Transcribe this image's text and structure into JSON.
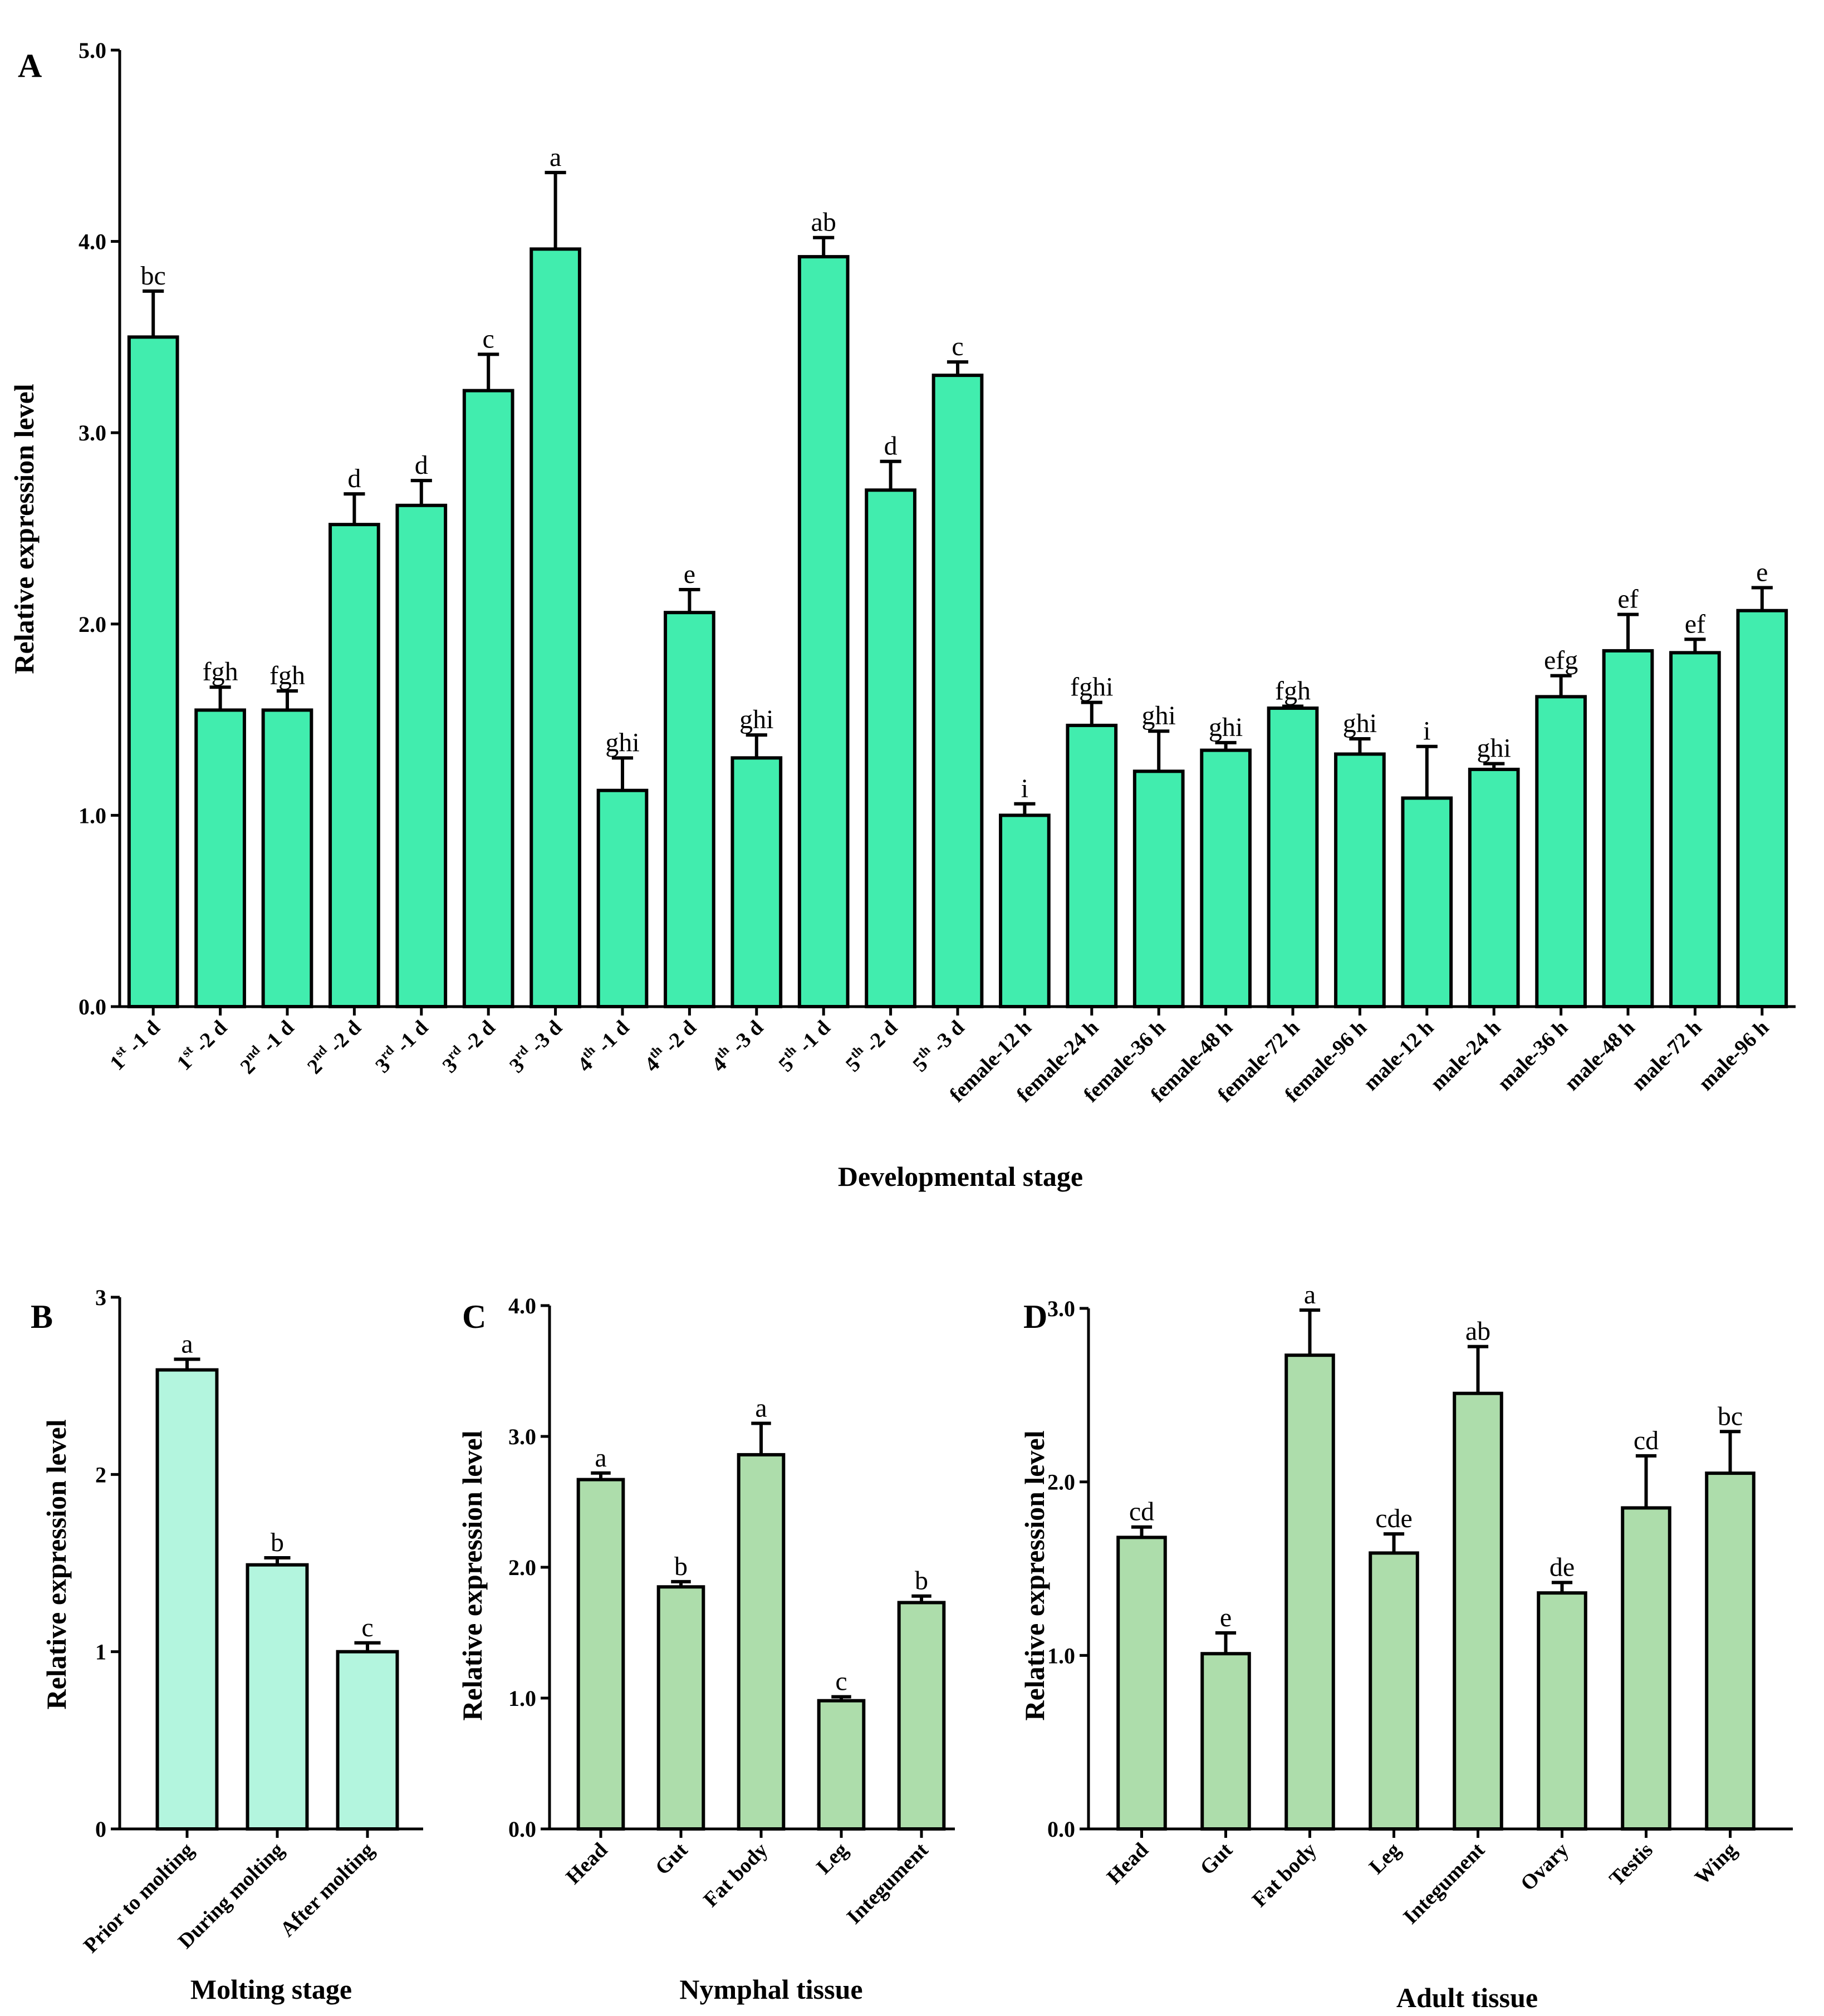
{
  "chart_data": [
    {
      "id": "A",
      "panel_label": "A",
      "type": "bar",
      "xlabel": "Developmental stage",
      "ylabel": "Relative expression level",
      "ylim": [
        0,
        5
      ],
      "yticks": [
        0,
        1,
        2,
        3,
        4,
        5
      ],
      "ytick_labels": [
        "0.0",
        "1.0",
        "2.0",
        "3.0",
        "4.0",
        "5.0"
      ],
      "bar_color": "#41EDAE",
      "categories": [
        {
          "num": "1",
          "sup": "st",
          "rest": "-1 d"
        },
        {
          "num": "1",
          "sup": "st",
          "rest": "-2 d"
        },
        {
          "num": "2",
          "sup": "nd",
          "rest": "-1 d"
        },
        {
          "num": "2",
          "sup": "nd",
          "rest": "-2 d"
        },
        {
          "num": "3",
          "sup": "rd",
          "rest": "-1 d"
        },
        {
          "num": "3",
          "sup": "rd",
          "rest": "-2 d"
        },
        {
          "num": "3",
          "sup": "rd",
          "rest": "-3 d"
        },
        {
          "num": "4",
          "sup": "th",
          "rest": "-1 d"
        },
        {
          "num": "4",
          "sup": "th",
          "rest": "-2 d"
        },
        {
          "num": "4",
          "sup": "th",
          "rest": "-3 d"
        },
        {
          "num": "5",
          "sup": "th",
          "rest": "-1 d"
        },
        {
          "num": "5",
          "sup": "th",
          "rest": "-2 d"
        },
        {
          "num": "5",
          "sup": "th",
          "rest": "-3 d"
        },
        {
          "num": "female-12 h",
          "sup": "",
          "rest": ""
        },
        {
          "num": "female-24 h",
          "sup": "",
          "rest": ""
        },
        {
          "num": "female-36 h",
          "sup": "",
          "rest": ""
        },
        {
          "num": "female-48 h",
          "sup": "",
          "rest": ""
        },
        {
          "num": "female-72 h",
          "sup": "",
          "rest": ""
        },
        {
          "num": "female-96 h",
          "sup": "",
          "rest": ""
        },
        {
          "num": "male-12 h",
          "sup": "",
          "rest": ""
        },
        {
          "num": "male-24 h",
          "sup": "",
          "rest": ""
        },
        {
          "num": "male-36 h",
          "sup": "",
          "rest": ""
        },
        {
          "num": "male-48 h",
          "sup": "",
          "rest": ""
        },
        {
          "num": "male-72 h",
          "sup": "",
          "rest": ""
        },
        {
          "num": "male-96 h",
          "sup": "",
          "rest": ""
        }
      ],
      "values": [
        3.5,
        1.55,
        1.55,
        2.52,
        2.62,
        3.22,
        3.96,
        1.13,
        2.06,
        1.3,
        3.92,
        2.7,
        3.3,
        1.0,
        1.47,
        1.23,
        1.34,
        1.56,
        1.32,
        1.09,
        1.24,
        1.62,
        1.86,
        1.85,
        2.07
      ],
      "errors": [
        0.24,
        0.12,
        0.1,
        0.16,
        0.13,
        0.19,
        0.4,
        0.17,
        0.12,
        0.12,
        0.1,
        0.15,
        0.07,
        0.06,
        0.12,
        0.21,
        0.04,
        0.01,
        0.08,
        0.27,
        0.03,
        0.11,
        0.19,
        0.07,
        0.12
      ],
      "significance": [
        "bc",
        "fgh",
        "fgh",
        "d",
        "d",
        "c",
        "a",
        "ghi",
        "e",
        "ghi",
        "ab",
        "d",
        "c",
        "i",
        "fghi",
        "ghi",
        "ghi",
        "fgh",
        "ghi",
        "i",
        "ghi",
        "efg",
        "ef",
        "ef",
        "e"
      ]
    },
    {
      "id": "B",
      "panel_label": "B",
      "type": "bar",
      "xlabel": "Molting stage",
      "ylabel": "Relative expression level",
      "ylim": [
        0,
        3
      ],
      "yticks": [
        0,
        1,
        2,
        3
      ],
      "ytick_labels": [
        "0",
        "1",
        "2",
        "3"
      ],
      "bar_color": "#B3F5DE",
      "categories": [
        {
          "num": "Prior to molting",
          "sup": "",
          "rest": ""
        },
        {
          "num": "During molting",
          "sup": "",
          "rest": ""
        },
        {
          "num": "After molting",
          "sup": "",
          "rest": ""
        }
      ],
      "values": [
        2.59,
        1.49,
        1.0
      ],
      "errors": [
        0.06,
        0.04,
        0.05
      ],
      "significance": [
        "a",
        "b",
        "c"
      ]
    },
    {
      "id": "C",
      "panel_label": "C",
      "type": "bar",
      "xlabel": "Nymphal tissue",
      "ylabel": "Relative expression level",
      "ylim": [
        0,
        4
      ],
      "yticks": [
        0,
        1,
        2,
        3,
        4
      ],
      "ytick_labels": [
        "0.0",
        "1.0",
        "2.0",
        "3.0",
        "4.0"
      ],
      "bar_color": "#ADDDAB",
      "categories": [
        {
          "num": "Head",
          "sup": "",
          "rest": ""
        },
        {
          "num": "Gut",
          "sup": "",
          "rest": ""
        },
        {
          "num": "Fat body",
          "sup": "",
          "rest": ""
        },
        {
          "num": "Leg",
          "sup": "",
          "rest": ""
        },
        {
          "num": "Integument",
          "sup": "",
          "rest": ""
        }
      ],
      "values": [
        2.67,
        1.85,
        2.86,
        0.98,
        1.73
      ],
      "errors": [
        0.05,
        0.04,
        0.24,
        0.03,
        0.05
      ],
      "significance": [
        "a",
        "b",
        "a",
        "c",
        "b"
      ]
    },
    {
      "id": "D",
      "panel_label": "D",
      "type": "bar",
      "xlabel": "Adult tissue",
      "ylabel": "Relative expression level",
      "ylim": [
        0,
        3
      ],
      "yticks": [
        0,
        1,
        2,
        3
      ],
      "ytick_labels": [
        "0.0",
        "1.0",
        "2.0",
        "3.0"
      ],
      "bar_color": "#ADDDAB",
      "categories": [
        {
          "num": "Head",
          "sup": "",
          "rest": ""
        },
        {
          "num": "Gut",
          "sup": "",
          "rest": ""
        },
        {
          "num": "Fat body",
          "sup": "",
          "rest": ""
        },
        {
          "num": "Leg",
          "sup": "",
          "rest": ""
        },
        {
          "num": "Integument",
          "sup": "",
          "rest": ""
        },
        {
          "num": "Ovary",
          "sup": "",
          "rest": ""
        },
        {
          "num": "Testis",
          "sup": "",
          "rest": ""
        },
        {
          "num": "Wing",
          "sup": "",
          "rest": ""
        }
      ],
      "values": [
        1.68,
        1.01,
        2.73,
        1.59,
        2.51,
        1.36,
        1.85,
        2.05
      ],
      "errors": [
        0.06,
        0.12,
        0.26,
        0.11,
        0.27,
        0.06,
        0.3,
        0.24
      ],
      "significance": [
        "cd",
        "e",
        "a",
        "cde",
        "ab",
        "de",
        "cd",
        "bc"
      ]
    }
  ]
}
